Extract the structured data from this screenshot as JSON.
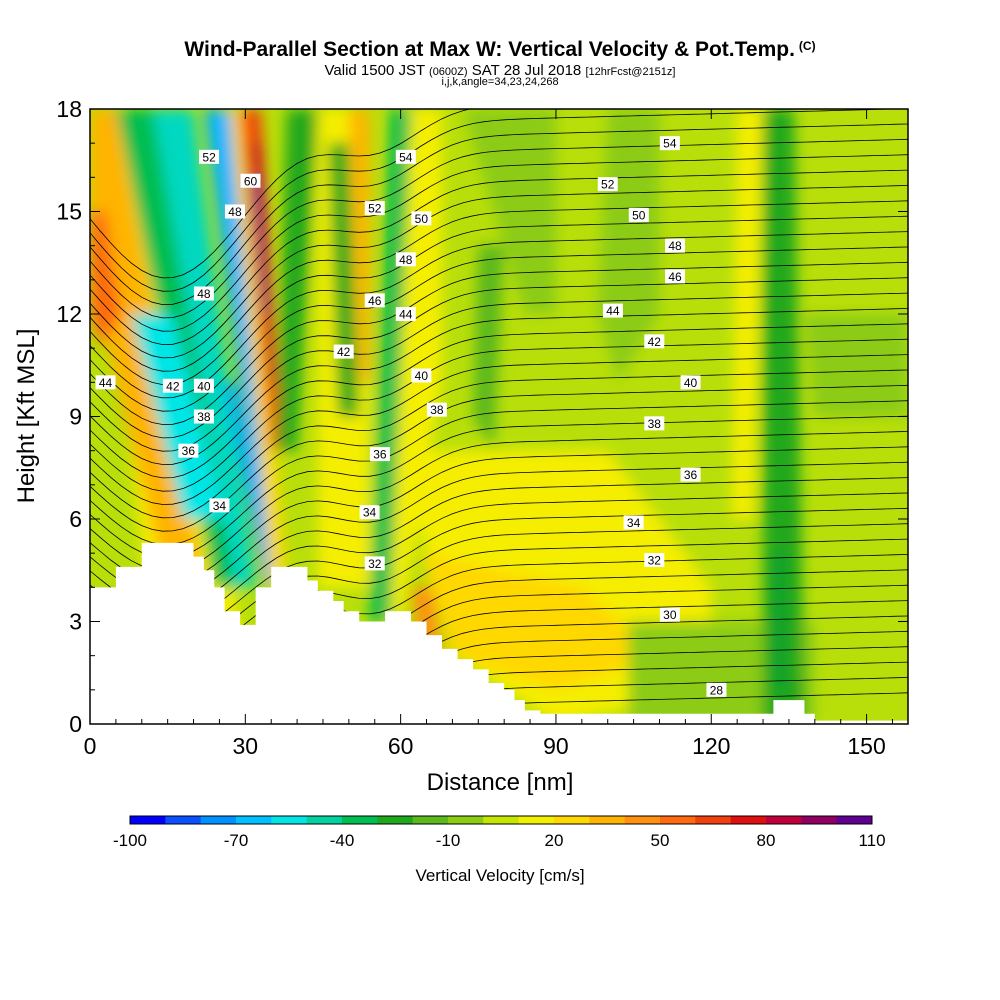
{
  "title": {
    "line1": "Wind-Parallel Section at Max W: Vertical Velocity & Pot.Temp.",
    "copyright": "(C)",
    "line2_a": "Valid 1500 JST",
    "line2_b": "(0600Z)",
    "line2_c": "SAT 28 Jul 2018",
    "line2_d": "[12hrFcst@2151z]",
    "line3": "i,j,k,angle=34,23,24,268"
  },
  "chart_data": {
    "type": "heatmap",
    "xlabel": "Distance [nm]",
    "ylabel": "Height [Kft MSL]",
    "xlim": [
      0,
      158
    ],
    "ylim": [
      0,
      18
    ],
    "xticks": [
      0,
      30,
      60,
      90,
      120,
      150
    ],
    "yticks": [
      0,
      3,
      6,
      9,
      12,
      15,
      18
    ],
    "colorbar": {
      "label": "Vertical Velocity [cm/s]",
      "tick_labels": [
        "-100",
        "-70",
        "-40",
        "-10",
        "20",
        "50",
        "80",
        "110"
      ],
      "colors": [
        "#0000ff",
        "#0a50ff",
        "#0090ff",
        "#00c0ff",
        "#00e6e6",
        "#00d2a0",
        "#00be50",
        "#20a81c",
        "#5cb81c",
        "#8ccc14",
        "#c4e600",
        "#f0f000",
        "#ffd800",
        "#ffb400",
        "#ff9010",
        "#ff6a10",
        "#f04010",
        "#e01010",
        "#c0003c",
        "#900064",
        "#600090"
      ]
    },
    "terrain_profile": [
      [
        0,
        4.0
      ],
      [
        5,
        4.0
      ],
      [
        5,
        4.6
      ],
      [
        10,
        4.6
      ],
      [
        10,
        5.3
      ],
      [
        20,
        5.3
      ],
      [
        20,
        4.9
      ],
      [
        22,
        4.9
      ],
      [
        22,
        4.5
      ],
      [
        24,
        4.5
      ],
      [
        24,
        4.0
      ],
      [
        26,
        4.0
      ],
      [
        26,
        3.3
      ],
      [
        29,
        3.3
      ],
      [
        29,
        2.9
      ],
      [
        32,
        2.9
      ],
      [
        32,
        4.0
      ],
      [
        35,
        4.0
      ],
      [
        35,
        4.6
      ],
      [
        42,
        4.6
      ],
      [
        42,
        4.2
      ],
      [
        44,
        4.2
      ],
      [
        44,
        3.9
      ],
      [
        47,
        3.9
      ],
      [
        47,
        3.6
      ],
      [
        49,
        3.6
      ],
      [
        49,
        3.3
      ],
      [
        52,
        3.3
      ],
      [
        52,
        3.0
      ],
      [
        57,
        3.0
      ],
      [
        57,
        3.3
      ],
      [
        62,
        3.3
      ],
      [
        62,
        3.0
      ],
      [
        65,
        3.0
      ],
      [
        65,
        2.6
      ],
      [
        68,
        2.6
      ],
      [
        68,
        2.2
      ],
      [
        71,
        2.2
      ],
      [
        71,
        1.9
      ],
      [
        74,
        1.9
      ],
      [
        74,
        1.6
      ],
      [
        77,
        1.6
      ],
      [
        77,
        1.2
      ],
      [
        80,
        1.2
      ],
      [
        80,
        1.0
      ],
      [
        82,
        1.0
      ],
      [
        82,
        0.7
      ],
      [
        84,
        0.7
      ],
      [
        84,
        0.4
      ],
      [
        87,
        0.4
      ],
      [
        87,
        0.3
      ],
      [
        132,
        0.3
      ],
      [
        132,
        0.7
      ],
      [
        138,
        0.7
      ],
      [
        138,
        0.3
      ],
      [
        140,
        0.3
      ],
      [
        140,
        0.1
      ],
      [
        158,
        0.1
      ]
    ],
    "contour_labels": [
      {
        "text": "54",
        "x": 112,
        "y": 17.0
      },
      {
        "text": "52",
        "x": 100,
        "y": 15.8
      },
      {
        "text": "50",
        "x": 106,
        "y": 14.9
      },
      {
        "text": "48",
        "x": 113,
        "y": 14.0
      },
      {
        "text": "46",
        "x": 113,
        "y": 13.1
      },
      {
        "text": "44",
        "x": 101,
        "y": 12.1
      },
      {
        "text": "42",
        "x": 109,
        "y": 11.2
      },
      {
        "text": "40",
        "x": 116,
        "y": 10.0
      },
      {
        "text": "38",
        "x": 109,
        "y": 8.8
      },
      {
        "text": "36",
        "x": 116,
        "y": 7.3
      },
      {
        "text": "34",
        "x": 105,
        "y": 5.9
      },
      {
        "text": "32",
        "x": 109,
        "y": 4.8
      },
      {
        "text": "30",
        "x": 112,
        "y": 3.2
      },
      {
        "text": "28",
        "x": 121,
        "y": 1.0
      },
      {
        "text": "44",
        "x": 3,
        "y": 10.0
      },
      {
        "text": "42",
        "x": 16,
        "y": 9.9
      },
      {
        "text": "40",
        "x": 22,
        "y": 9.9
      },
      {
        "text": "38",
        "x": 22,
        "y": 9.0
      },
      {
        "text": "36",
        "x": 19,
        "y": 8.0
      },
      {
        "text": "34",
        "x": 25,
        "y": 6.4
      },
      {
        "text": "48",
        "x": 22,
        "y": 12.6
      },
      {
        "text": "48",
        "x": 28,
        "y": 15.0
      },
      {
        "text": "52",
        "x": 23,
        "y": 16.6
      },
      {
        "text": "60",
        "x": 31,
        "y": 15.9
      },
      {
        "text": "42",
        "x": 49,
        "y": 10.9
      },
      {
        "text": "46",
        "x": 55,
        "y": 12.4
      },
      {
        "text": "44",
        "x": 61,
        "y": 12.0
      },
      {
        "text": "40",
        "x": 64,
        "y": 10.2
      },
      {
        "text": "38",
        "x": 67,
        "y": 9.2
      },
      {
        "text": "36",
        "x": 56,
        "y": 7.9
      },
      {
        "text": "34",
        "x": 54,
        "y": 6.2
      },
      {
        "text": "32",
        "x": 55,
        "y": 4.7
      },
      {
        "text": "48",
        "x": 61,
        "y": 13.6
      },
      {
        "text": "50",
        "x": 64,
        "y": 14.8
      },
      {
        "text": "52",
        "x": 55,
        "y": 15.1
      },
      {
        "text": "54",
        "x": 61,
        "y": 16.6
      }
    ]
  }
}
